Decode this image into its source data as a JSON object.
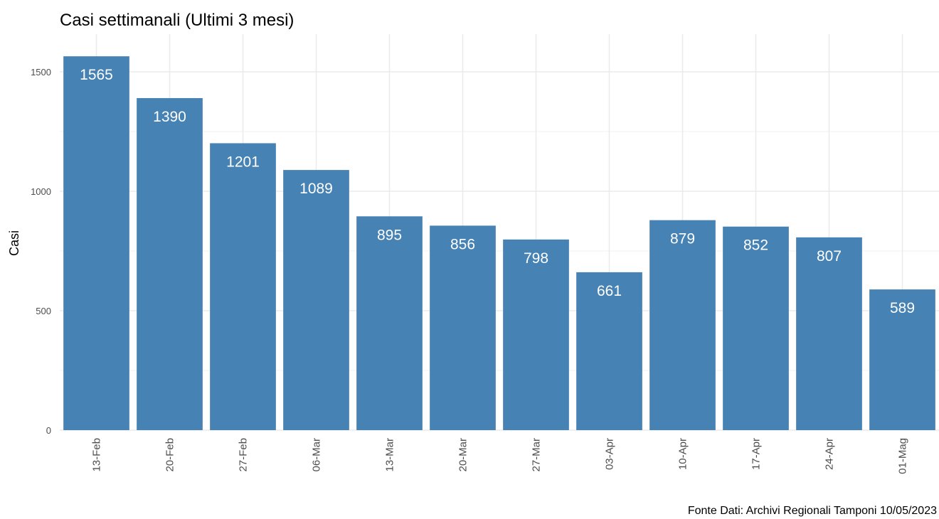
{
  "chart_data": {
    "type": "bar",
    "title": "Casi settimanali (Ultimi 3 mesi)",
    "xlabel": "",
    "ylabel": "Casi",
    "caption": "Fonte Dati: Archivi Regionali Tamponi 10/05/2023",
    "categories": [
      "13-Feb",
      "20-Feb",
      "27-Feb",
      "06-Mar",
      "13-Mar",
      "20-Mar",
      "27-Mar",
      "03-Apr",
      "10-Apr",
      "17-Apr",
      "24-Apr",
      "01-Mag"
    ],
    "values": [
      1565,
      1390,
      1201,
      1089,
      895,
      856,
      798,
      661,
      879,
      852,
      807,
      589
    ],
    "data_labels": [
      "1565",
      "1390",
      "1201",
      "1089",
      "895",
      "856",
      "798",
      "661",
      "879",
      "852",
      "807",
      "589"
    ],
    "ylim": [
      0,
      1650
    ],
    "yticks": [
      0,
      500,
      1000,
      1500
    ],
    "ytick_labels": [
      "0",
      "500",
      "1000",
      "1500"
    ],
    "grid": true,
    "bar_color": "#4682b4",
    "grid_color": "#ebebeb"
  }
}
